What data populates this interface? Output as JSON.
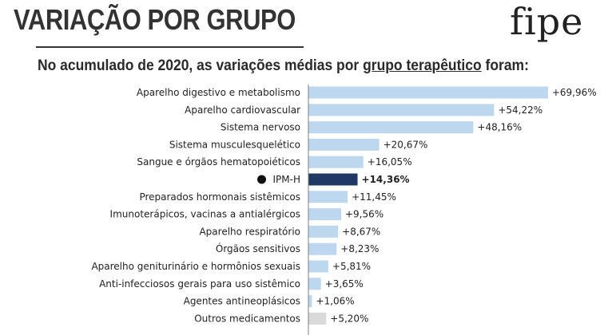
{
  "header": {
    "title": "VARIAÇÃO POR GRUPO",
    "logo": "fipe",
    "subtitle_pre": "No acumulado de 2020, as variações médias por ",
    "subtitle_link": "grupo terapêutico",
    "subtitle_post": " foram:"
  },
  "chart_data": {
    "type": "bar",
    "orientation": "horizontal",
    "categories": [
      "Aparelho digestivo e metabolismo",
      "Aparelho cardiovascular",
      "Sistema nervoso",
      "Sistema musculesquelético",
      "Sangue e órgãos hematopoiéticos",
      "IPM-H",
      "Preparados hormonais sistêmicos",
      "Imunoterápicos, vacinas a antialérgicos",
      "Aparelho respiratório",
      "Órgãos sensitivos",
      "Aparelho geniturinário e hormônios sexuais",
      "Anti-infecciosos gerais para uso sistêmico",
      "Agentes antineoplásicos",
      "Outros medicamentos"
    ],
    "values": [
      69.96,
      54.22,
      48.16,
      20.67,
      16.05,
      14.36,
      11.45,
      9.56,
      8.67,
      8.23,
      5.81,
      3.65,
      1.06,
      5.2
    ],
    "value_labels": [
      "+69,96%",
      "+54,22%",
      "+48,16%",
      "+20,67%",
      "+16,05%",
      "+14,36%",
      "+11,45%",
      "+9,56%",
      "+8,67%",
      "+8,23%",
      "+5,81%",
      "+3,65%",
      "+1,06%",
      "+5,20%"
    ],
    "highlight_category": "IPM-H",
    "colors": {
      "default": "#bdd7ee",
      "highlight": "#1f3864",
      "other": "#d9d9d9"
    },
    "xlim": [
      0,
      70
    ],
    "grid": false,
    "legend": "none"
  }
}
